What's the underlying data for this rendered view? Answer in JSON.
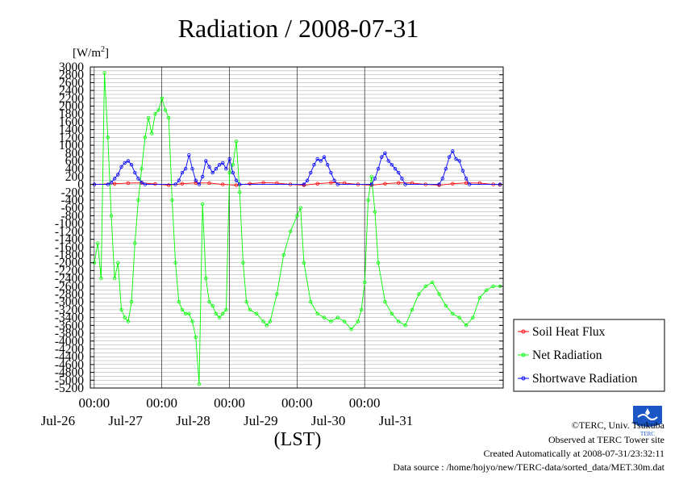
{
  "chart_data": {
    "type": "line",
    "title": "Radiation / 2008-07-31",
    "ylabel": "[W/m2]",
    "xlabel": "(LST)",
    "ylim": [
      -5200,
      3000
    ],
    "xlim": [
      0,
      6
    ],
    "yticks": [
      3000,
      2800,
      2600,
      2400,
      2200,
      2000,
      1800,
      1600,
      1400,
      1200,
      1000,
      800,
      600,
      400,
      200,
      0,
      -200,
      -400,
      -600,
      -800,
      -1000,
      -1200,
      -1400,
      -1600,
      -1800,
      -2000,
      -2200,
      -2400,
      -2600,
      -2800,
      -3000,
      -3200,
      -3400,
      -3600,
      -3800,
      -4000,
      -4200,
      -4400,
      -4600,
      -4800,
      -5000,
      -5200
    ],
    "xticks": [
      {
        "x": 1,
        "time": "00:00",
        "date": "Jul-26"
      },
      {
        "x": 2,
        "time": "00:00",
        "date": "Jul-27"
      },
      {
        "x": 3,
        "time": "00:00",
        "date": "Jul-28"
      },
      {
        "x": 4,
        "time": "00:00",
        "date": "Jul-29"
      },
      {
        "x": 5,
        "time": "00:00",
        "date": "Jul-30"
      },
      {
        "x": 6,
        "time": "",
        "date": "Jul-31"
      }
    ],
    "legend_position": "right",
    "grid": true,
    "series": [
      {
        "name": "Soil Heat Flux",
        "color": "#ff0000",
        "points": [
          [
            0,
            0
          ],
          [
            0.3,
            20
          ],
          [
            0.5,
            35
          ],
          [
            0.7,
            40
          ],
          [
            0.9,
            10
          ],
          [
            1.1,
            -20
          ],
          [
            1.3,
            20
          ],
          [
            1.5,
            40
          ],
          [
            1.7,
            35
          ],
          [
            1.9,
            0
          ],
          [
            2.1,
            -20
          ],
          [
            2.3,
            20
          ],
          [
            2.5,
            45
          ],
          [
            2.7,
            35
          ],
          [
            2.9,
            0
          ],
          [
            3.1,
            -20
          ],
          [
            3.3,
            20
          ],
          [
            3.5,
            45
          ],
          [
            3.7,
            35
          ],
          [
            3.9,
            0
          ],
          [
            4.1,
            -20
          ],
          [
            4.3,
            20
          ],
          [
            4.5,
            40
          ],
          [
            4.7,
            35
          ],
          [
            4.9,
            0
          ],
          [
            5.1,
            -20
          ],
          [
            5.3,
            20
          ],
          [
            5.5,
            40
          ],
          [
            5.7,
            35
          ],
          [
            5.9,
            0
          ],
          [
            6,
            -10
          ]
        ]
      },
      {
        "name": "Net Radiation",
        "color": "#00ff00",
        "points": [
          [
            0,
            -2000
          ],
          [
            0.05,
            -1500
          ],
          [
            0.1,
            -2400
          ],
          [
            0.15,
            2850
          ],
          [
            0.2,
            1200
          ],
          [
            0.25,
            -800
          ],
          [
            0.3,
            -2400
          ],
          [
            0.35,
            -2000
          ],
          [
            0.4,
            -3200
          ],
          [
            0.45,
            -3400
          ],
          [
            0.5,
            -3500
          ],
          [
            0.55,
            -3000
          ],
          [
            0.6,
            -1500
          ],
          [
            0.65,
            -400
          ],
          [
            0.7,
            400
          ],
          [
            0.75,
            1200
          ],
          [
            0.8,
            1700
          ],
          [
            0.85,
            1300
          ],
          [
            0.9,
            1800
          ],
          [
            0.95,
            1900
          ],
          [
            1,
            2200
          ],
          [
            1.05,
            1900
          ],
          [
            1.1,
            1700
          ],
          [
            1.15,
            -400
          ],
          [
            1.2,
            -2000
          ],
          [
            1.25,
            -3000
          ],
          [
            1.3,
            -3200
          ],
          [
            1.35,
            -3300
          ],
          [
            1.4,
            -3300
          ],
          [
            1.45,
            -3500
          ],
          [
            1.5,
            -3900
          ],
          [
            1.55,
            -5100
          ],
          [
            1.6,
            -500
          ],
          [
            1.65,
            -2400
          ],
          [
            1.7,
            -3000
          ],
          [
            1.75,
            -3100
          ],
          [
            1.8,
            -3300
          ],
          [
            1.85,
            -3400
          ],
          [
            1.9,
            -3300
          ],
          [
            1.95,
            -3200
          ],
          [
            2,
            300
          ],
          [
            2.05,
            500
          ],
          [
            2.1,
            1100
          ],
          [
            2.15,
            -200
          ],
          [
            2.2,
            -2000
          ],
          [
            2.25,
            -3000
          ],
          [
            2.3,
            -3200
          ],
          [
            2.4,
            -3300
          ],
          [
            2.5,
            -3500
          ],
          [
            2.55,
            -3600
          ],
          [
            2.6,
            -3500
          ],
          [
            2.7,
            -2800
          ],
          [
            2.8,
            -1800
          ],
          [
            2.9,
            -1200
          ],
          [
            3,
            -800
          ],
          [
            3.05,
            -600
          ],
          [
            3.1,
            -2000
          ],
          [
            3.2,
            -3000
          ],
          [
            3.3,
            -3300
          ],
          [
            3.4,
            -3400
          ],
          [
            3.5,
            -3500
          ],
          [
            3.6,
            -3400
          ],
          [
            3.7,
            -3500
          ],
          [
            3.8,
            -3700
          ],
          [
            3.9,
            -3500
          ],
          [
            3.95,
            -3200
          ],
          [
            4,
            -2500
          ],
          [
            4.05,
            -400
          ],
          [
            4.1,
            200
          ],
          [
            4.15,
            -700
          ],
          [
            4.2,
            -2000
          ],
          [
            4.3,
            -3000
          ],
          [
            4.4,
            -3300
          ],
          [
            4.5,
            -3500
          ],
          [
            4.6,
            -3600
          ],
          [
            4.7,
            -3200
          ],
          [
            4.8,
            -2800
          ],
          [
            4.9,
            -2600
          ],
          [
            5,
            -2500
          ],
          [
            5.1,
            -2800
          ],
          [
            5.2,
            -3100
          ],
          [
            5.3,
            -3300
          ],
          [
            5.4,
            -3400
          ],
          [
            5.5,
            -3600
          ],
          [
            5.6,
            -3400
          ],
          [
            5.7,
            -2900
          ],
          [
            5.8,
            -2700
          ],
          [
            5.9,
            -2600
          ],
          [
            6,
            -2600
          ]
        ]
      },
      {
        "name": "Shortwave Radiation",
        "color": "#0000ff",
        "points": [
          [
            0,
            0
          ],
          [
            0.2,
            0
          ],
          [
            0.25,
            50
          ],
          [
            0.3,
            150
          ],
          [
            0.35,
            250
          ],
          [
            0.4,
            450
          ],
          [
            0.45,
            550
          ],
          [
            0.5,
            600
          ],
          [
            0.55,
            500
          ],
          [
            0.6,
            300
          ],
          [
            0.65,
            150
          ],
          [
            0.7,
            50
          ],
          [
            0.75,
            0
          ],
          [
            1.2,
            0
          ],
          [
            1.25,
            100
          ],
          [
            1.3,
            300
          ],
          [
            1.35,
            400
          ],
          [
            1.4,
            750
          ],
          [
            1.45,
            400
          ],
          [
            1.5,
            100
          ],
          [
            1.55,
            0
          ],
          [
            1.6,
            200
          ],
          [
            1.65,
            600
          ],
          [
            1.7,
            450
          ],
          [
            1.75,
            300
          ],
          [
            1.8,
            400
          ],
          [
            1.85,
            500
          ],
          [
            1.9,
            550
          ],
          [
            1.95,
            400
          ],
          [
            2,
            650
          ],
          [
            2.05,
            300
          ],
          [
            2.1,
            100
          ],
          [
            2.15,
            0
          ],
          [
            3.1,
            0
          ],
          [
            3.15,
            100
          ],
          [
            3.2,
            300
          ],
          [
            3.25,
            500
          ],
          [
            3.3,
            650
          ],
          [
            3.35,
            600
          ],
          [
            3.4,
            700
          ],
          [
            3.45,
            500
          ],
          [
            3.5,
            300
          ],
          [
            3.55,
            100
          ],
          [
            3.6,
            0
          ],
          [
            4.1,
            0
          ],
          [
            4.15,
            150
          ],
          [
            4.2,
            400
          ],
          [
            4.25,
            700
          ],
          [
            4.3,
            800
          ],
          [
            4.35,
            600
          ],
          [
            4.4,
            500
          ],
          [
            4.45,
            400
          ],
          [
            4.5,
            300
          ],
          [
            4.55,
            150
          ],
          [
            4.6,
            0
          ],
          [
            5.1,
            0
          ],
          [
            5.15,
            150
          ],
          [
            5.2,
            400
          ],
          [
            5.25,
            700
          ],
          [
            5.3,
            850
          ],
          [
            5.35,
            650
          ],
          [
            5.4,
            600
          ],
          [
            5.45,
            350
          ],
          [
            5.5,
            150
          ],
          [
            5.55,
            0
          ],
          [
            6,
            0
          ]
        ]
      }
    ]
  },
  "footer": {
    "copyright": "©TERC, Univ. Tsukuba",
    "observed": "Observed at TERC Tower site",
    "created": "Created Automatically at 2008-07-31/23:32:11",
    "source": "Data source : /home/hojyo/new/TERC-data/sorted_data/MET.30m.dat"
  },
  "logo": {
    "text": "TERC"
  }
}
